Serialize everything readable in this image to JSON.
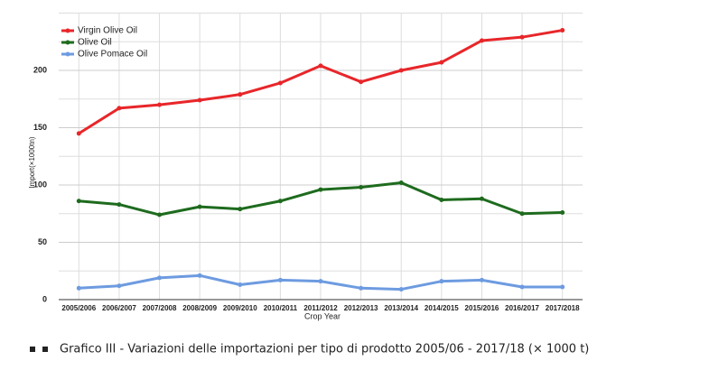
{
  "chart_data": {
    "type": "line",
    "x_label": "Crop Year",
    "y_label": "Import(×1000tn)",
    "caption": "Grafico III - Variazioni delle importazioni per tipo di prodotto 2005/06 - 2017/18 (× 1000 t)",
    "categories": [
      "2005/2006",
      "2006/2007",
      "2007/2008",
      "2008/2009",
      "2009/2010",
      "2010/2011",
      "2011/2012",
      "2012/2013",
      "2013/2014",
      "2014/2015",
      "2015/2016",
      "2016/2017",
      "2017/2018"
    ],
    "series": [
      {
        "name": "Virgin Olive Oil",
        "color": "#e8262a",
        "values": [
          145,
          167,
          170,
          174,
          179,
          189,
          204,
          190,
          200,
          207,
          226,
          229,
          235
        ]
      },
      {
        "name": "Olive Oil",
        "color": "#1e6b1e",
        "values": [
          86,
          83,
          74,
          81,
          79,
          86,
          96,
          98,
          102,
          87,
          88,
          75,
          76
        ]
      },
      {
        "name": "Olive Pomace Oil",
        "color": "#6d9be0",
        "values": [
          10,
          12,
          19,
          21,
          13,
          17,
          16,
          10,
          9,
          16,
          17,
          11,
          11
        ]
      }
    ],
    "ylim": [
      0,
      250
    ],
    "yticks": [
      0,
      50,
      100,
      150,
      200
    ],
    "minor_grid_step": 25,
    "grid": true,
    "legend": "top-left"
  }
}
